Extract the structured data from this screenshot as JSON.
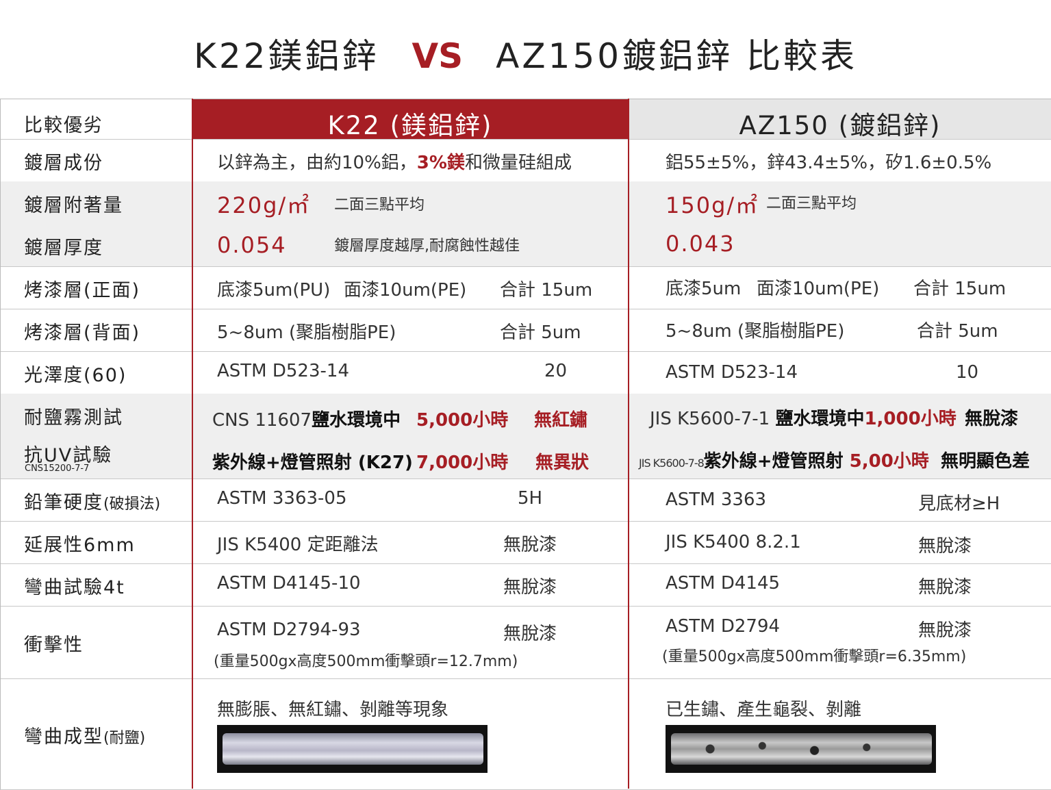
{
  "title": {
    "part1": "K22鎂鋁鋅",
    "vs": "VS",
    "part2": "AZ150鍍鋁鋅 比較表"
  },
  "colors": {
    "accent": "#a61e24",
    "header_gray": "#e6e6e6",
    "row_gray": "#efefef"
  },
  "header": {
    "label": "比較優劣",
    "k22": "K22 (鎂鋁鋅)",
    "az150": "AZ150 (鍍鋁鋅)"
  },
  "rows": [
    {
      "label": "鍍層成份",
      "k22": [
        {
          "t": "以鋅為主，由約10%鋁，"
        },
        {
          "t": "3%鎂",
          "c": "red b"
        },
        {
          "t": "和微量硅組成"
        }
      ],
      "az": [
        {
          "t": "鋁55±5%，鋅43.4±5%，矽1.6±0.5%"
        }
      ]
    },
    {
      "label": "鍍層附著量",
      "k22": [
        {
          "t": "220g/㎡",
          "c": "red big"
        },
        {
          "t": "二面三點平均",
          "c": "sm"
        }
      ],
      "az": [
        {
          "t": "150g/㎡",
          "c": "red big"
        },
        {
          "t": "二面三點平均",
          "c": "sm"
        }
      ]
    },
    {
      "label": "鍍層厚度",
      "k22": [
        {
          "t": "0.054",
          "c": "red big"
        },
        {
          "t": "鍍層厚度越厚,耐腐蝕性越佳",
          "c": "sm"
        }
      ],
      "az": [
        {
          "t": "0.043",
          "c": "red big"
        }
      ]
    },
    {
      "label": "烤漆層(正面)",
      "k22": [
        {
          "t": "底漆5um(PU)"
        },
        {
          "t": "面漆10um(PE)"
        },
        {
          "t": "合計 15um"
        }
      ],
      "az": [
        {
          "t": "底漆5um"
        },
        {
          "t": "面漆10um(PE)"
        },
        {
          "t": "合計 15um"
        }
      ]
    },
    {
      "label": "烤漆層(背面)",
      "k22": [
        {
          "t": "5~8um  (聚脂樹脂PE)"
        },
        {
          "t": "合計 5um"
        }
      ],
      "az": [
        {
          "t": "5~8um  (聚脂樹脂PE)"
        },
        {
          "t": "合計 5um"
        }
      ]
    },
    {
      "label": "光澤度(60)",
      "k22": [
        {
          "t": "ASTM  D523-14"
        },
        {
          "t": "20"
        }
      ],
      "az": [
        {
          "t": "ASTM D523-14"
        },
        {
          "t": "10"
        }
      ]
    },
    {
      "label": "耐鹽霧測試",
      "k22": [
        {
          "t": "CNS 11607"
        },
        {
          "t": "鹽水環境中",
          "c": "b"
        },
        {
          "t": "5,000小時",
          "c": "red b"
        },
        {
          "t": "無紅鏽",
          "c": "red b"
        }
      ],
      "az": [
        {
          "t": "JIS  K5600-7-1 "
        },
        {
          "t": "鹽水環境中",
          "c": "b"
        },
        {
          "t": "1,000小時",
          "c": "red b"
        },
        {
          "t": "無脫漆",
          "c": "b"
        }
      ]
    },
    {
      "label": "抗UV試驗",
      "label_sub": "CNS15200-7-7",
      "k22": [
        {
          "t": "紫外線+燈管照射 (K27)",
          "c": "b"
        },
        {
          "t": "7,000小時",
          "c": "red b"
        },
        {
          "t": "無異狀",
          "c": "red b"
        }
      ],
      "az": [
        {
          "t": "JIS K5600-7-8",
          "c": "xs"
        },
        {
          "t": "紫外線+燈管照射 ",
          "c": "b"
        },
        {
          "t": "5,00小時",
          "c": "red b"
        },
        {
          "t": "無明顯色差",
          "c": "b"
        }
      ]
    },
    {
      "label": "鉛筆硬度",
      "label_small": "(破損法)",
      "k22": [
        {
          "t": "ASTM 3363-05"
        },
        {
          "t": "5H"
        }
      ],
      "az": [
        {
          "t": "ASTM 3363"
        },
        {
          "t": "見底材≥H"
        }
      ]
    },
    {
      "label": "延展性6mm",
      "k22": [
        {
          "t": "JIS K5400 定距離法"
        },
        {
          "t": "無脫漆"
        }
      ],
      "az": [
        {
          "t": "JIS K5400  8.2.1"
        },
        {
          "t": "無脫漆"
        }
      ]
    },
    {
      "label": "彎曲試驗4t",
      "k22": [
        {
          "t": "ASTM D4145-10"
        },
        {
          "t": "無脫漆"
        }
      ],
      "az": [
        {
          "t": "ASTM D4145"
        },
        {
          "t": "無脫漆"
        }
      ]
    },
    {
      "label": "衝擊性",
      "k22": [
        {
          "t": "ASTM D2794-93"
        },
        {
          "t": "無脫漆"
        },
        {
          "t": "(重量500gx高度500mm衝擊頭r=12.7mm)",
          "c": "sm"
        }
      ],
      "az": [
        {
          "t": "ASTM D2794"
        },
        {
          "t": "無脫漆"
        },
        {
          "t": "(重量500gx高度500mm衝擊頭r=6.35mm)",
          "c": "sm"
        }
      ]
    },
    {
      "label": "彎曲成型",
      "label_small": "(耐鹽)",
      "k22": [
        {
          "t": "無膨脹、無紅鏽、剝離等現象"
        }
      ],
      "az": [
        {
          "t": "已生鏽、產生龜裂、剝離"
        }
      ],
      "photos": true
    }
  ]
}
